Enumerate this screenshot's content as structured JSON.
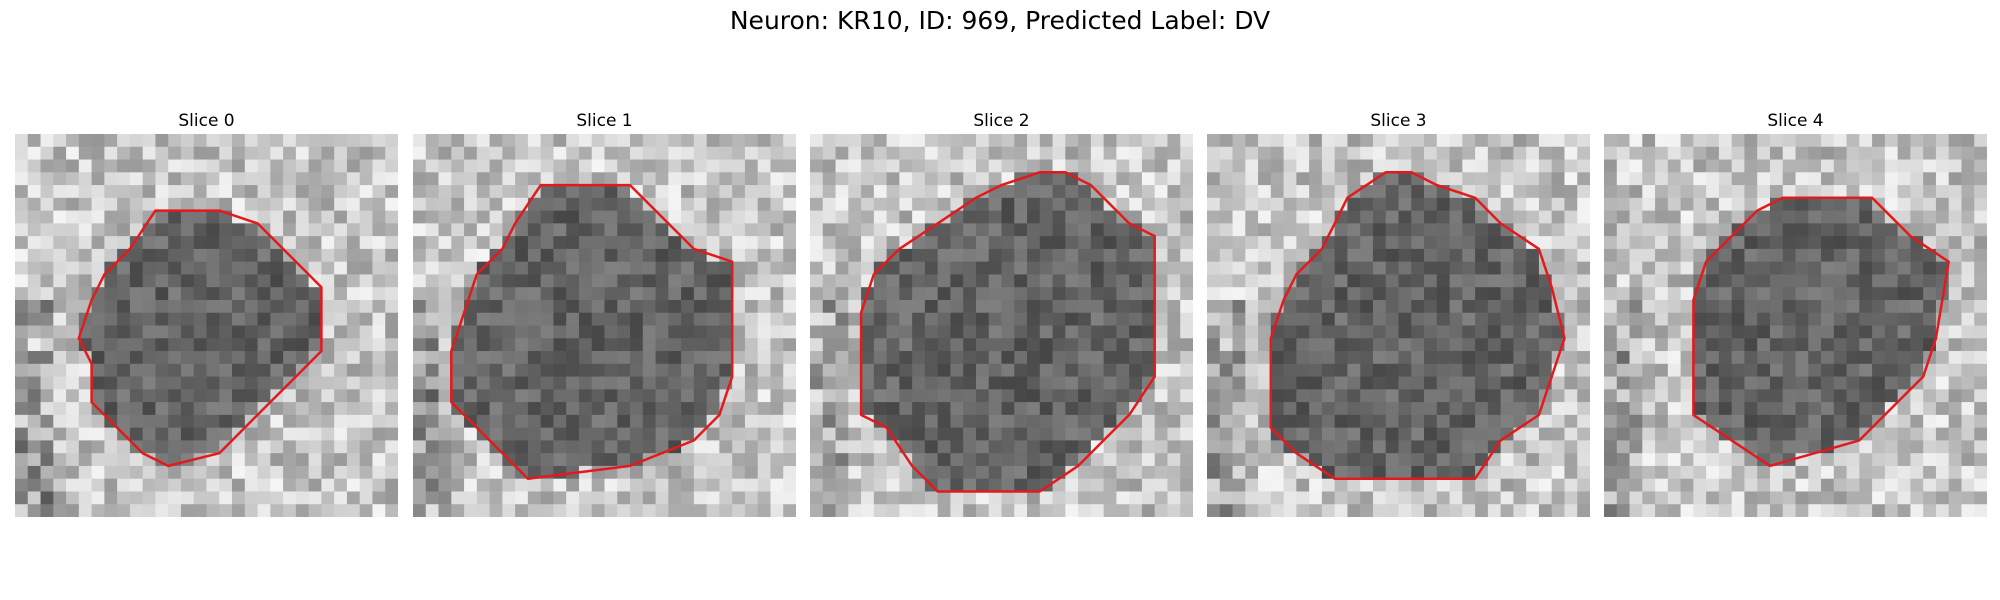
{
  "figure": {
    "title": "Neuron: KR10, ID: 969, Predicted Label: DV"
  },
  "panels": [
    {
      "title": "Slice 0"
    },
    {
      "title": "Slice 1"
    },
    {
      "title": "Slice 2"
    },
    {
      "title": "Slice 3"
    },
    {
      "title": "Slice 4"
    }
  ],
  "colors": {
    "contour": "#e31a1c",
    "background": "#ffffff"
  }
}
